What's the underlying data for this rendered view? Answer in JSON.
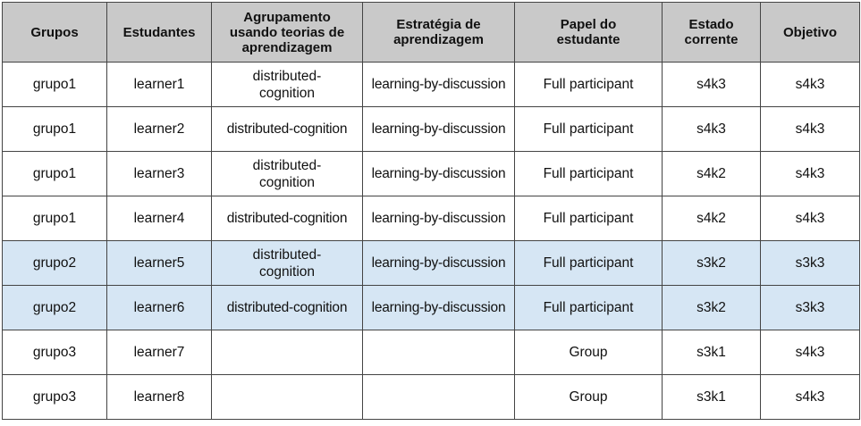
{
  "table": {
    "headers": [
      "Grupos",
      "Estudantes",
      "Agrupamento usando teorias de aprendizagem",
      "Estratégia de aprendizagem",
      "Papel do estudante",
      "Estado corrente",
      "Objetivo"
    ],
    "rows": [
      {
        "grupo": "grupo1",
        "estudante": "learner1",
        "agrupamento": "distributed-cognition",
        "estrategia": "learning-by-discussion",
        "papel": "Full participant",
        "estado": "s4k3",
        "objetivo": "s4k3"
      },
      {
        "grupo": "grupo1",
        "estudante": "learner2",
        "agrupamento": "distributed-cognition",
        "estrategia": "learning-by-discussion",
        "papel": "Full participant",
        "estado": "s4k3",
        "objetivo": "s4k3"
      },
      {
        "grupo": "grupo1",
        "estudante": "learner3",
        "agrupamento": "distributed-cognition",
        "estrategia": "learning-by-discussion",
        "papel": "Full participant",
        "estado": "s4k2",
        "objetivo": "s4k3"
      },
      {
        "grupo": "grupo1",
        "estudante": "learner4",
        "agrupamento": "distributed-cognition",
        "estrategia": "learning-by-discussion",
        "papel": "Full participant",
        "estado": "s4k2",
        "objetivo": "s4k3"
      },
      {
        "grupo": "grupo2",
        "estudante": "learner5",
        "agrupamento": "distributed-cognition",
        "estrategia": "learning-by-discussion",
        "papel": "Full participant",
        "estado": "s3k2",
        "objetivo": "s3k3"
      },
      {
        "grupo": "grupo2",
        "estudante": "learner6",
        "agrupamento": "distributed-cognition",
        "estrategia": "learning-by-discussion",
        "papel": "Full participant",
        "estado": "s3k2",
        "objetivo": "s3k3"
      },
      {
        "grupo": "grupo3",
        "estudante": "learner7",
        "agrupamento": "",
        "estrategia": "",
        "papel": "Group",
        "estado": "s3k1",
        "objetivo": "s4k3"
      },
      {
        "grupo": "grupo3",
        "estudante": "learner8",
        "agrupamento": "",
        "estrategia": "",
        "papel": "Group",
        "estado": "s3k1",
        "objetivo": "s4k3"
      }
    ]
  },
  "colors": {
    "header_bg": "#c9c9c9",
    "highlight_bg": "#d6e6f4",
    "border": "#444444"
  }
}
